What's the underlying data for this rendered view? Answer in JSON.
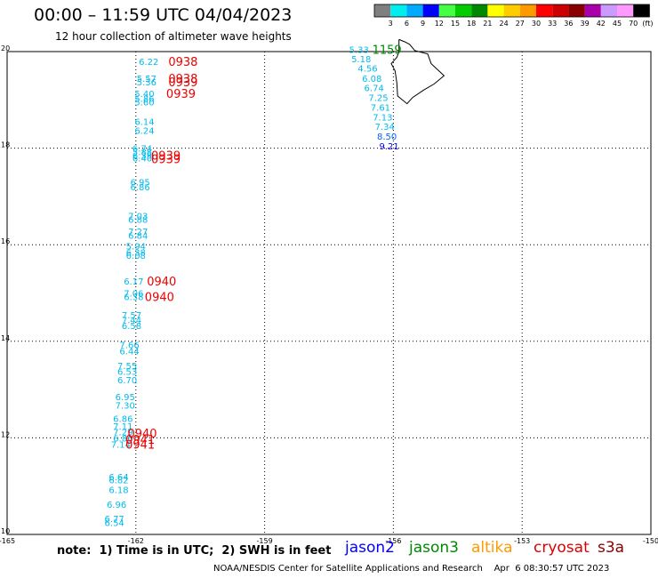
{
  "header": {
    "title": "00:00 – 11:59 UTC 04/04/2023",
    "subtitle": "12 hour collection of altimeter wave heights"
  },
  "footer": {
    "note": "note:  1) Time is in UTC;  2) SWH is in feet",
    "credit": "NOAA/NESDIS Center for Satellite Applications and Research    Apr  6 08:30:57 UTC 2023",
    "satellites": [
      {
        "name": "jason2",
        "color": "#0000ff"
      },
      {
        "name": "jason3",
        "color": "#008800"
      },
      {
        "name": "altika",
        "color": "#ff9900"
      },
      {
        "name": "cryosat",
        "color": "#dd0000"
      },
      {
        "name": "s3a",
        "color": "#880000"
      }
    ]
  },
  "legend": {
    "values": [
      "3",
      "6",
      "9",
      "12",
      "15",
      "18",
      "21",
      "24",
      "27",
      "30",
      "33",
      "36",
      "39",
      "42",
      "45",
      "70"
    ],
    "unit": "(ft)",
    "colors": [
      "#7f7f7f",
      "#00eeee",
      "#00aaff",
      "#0000ff",
      "#44ff44",
      "#00cc00",
      "#008800",
      "#ffff00",
      "#ffcc00",
      "#ff9900",
      "#ff0000",
      "#cc0000",
      "#880000",
      "#aa00aa",
      "#cc99ff",
      "#ff99ff",
      "#000000"
    ]
  },
  "chart_data": {
    "type": "scatter",
    "xlim": [
      -165,
      -150
    ],
    "ylim": [
      10,
      20
    ],
    "x_ticks": [
      "-165",
      "-162",
      "-159",
      "-156",
      "-153",
      "-150"
    ],
    "y_ticks": [
      "10",
      "12",
      "14",
      "16",
      "18",
      "20"
    ],
    "grid": true,
    "swh_points": [
      {
        "lon": -161.7,
        "lat": 19.8,
        "value": "6.22",
        "color": "#00bbee"
      },
      {
        "lon": -161.75,
        "lat": 19.45,
        "value": "5.57",
        "color": "#00bbee"
      },
      {
        "lon": -161.75,
        "lat": 19.37,
        "value": "5.36",
        "color": "#00bbee"
      },
      {
        "lon": -161.8,
        "lat": 19.13,
        "value": "5.40",
        "color": "#00bbee"
      },
      {
        "lon": -161.8,
        "lat": 19.03,
        "value": "5.86",
        "color": "#00bbee"
      },
      {
        "lon": -161.8,
        "lat": 18.96,
        "value": "5.60",
        "color": "#00bbee"
      },
      {
        "lon": -161.8,
        "lat": 18.55,
        "value": "6.14",
        "color": "#00bbee"
      },
      {
        "lon": -161.8,
        "lat": 18.37,
        "value": "6.24",
        "color": "#00bbee"
      },
      {
        "lon": -161.85,
        "lat": 18.0,
        "value": "6.74",
        "color": "#00bbee"
      },
      {
        "lon": -161.85,
        "lat": 17.93,
        "value": "5.88",
        "color": "#00bbee"
      },
      {
        "lon": -161.85,
        "lat": 17.85,
        "value": "6.39",
        "color": "#00bbee"
      },
      {
        "lon": -161.85,
        "lat": 17.8,
        "value": "6.40",
        "color": "#00bbee"
      },
      {
        "lon": -161.9,
        "lat": 17.3,
        "value": "6.95",
        "color": "#00bbee"
      },
      {
        "lon": -161.9,
        "lat": 17.2,
        "value": "6.86",
        "color": "#00bbee"
      },
      {
        "lon": -161.95,
        "lat": 16.6,
        "value": "7.03",
        "color": "#00bbee"
      },
      {
        "lon": -161.95,
        "lat": 16.53,
        "value": "6.88",
        "color": "#00bbee"
      },
      {
        "lon": -161.95,
        "lat": 16.28,
        "value": "7.27",
        "color": "#00bbee"
      },
      {
        "lon": -161.95,
        "lat": 16.2,
        "value": "6.84",
        "color": "#00bbee"
      },
      {
        "lon": -162.0,
        "lat": 15.98,
        "value": "5.94",
        "color": "#00bbee"
      },
      {
        "lon": -162.0,
        "lat": 15.85,
        "value": "6.38",
        "color": "#00bbee"
      },
      {
        "lon": -162.0,
        "lat": 15.78,
        "value": "6.08",
        "color": "#00bbee"
      },
      {
        "lon": -162.05,
        "lat": 15.25,
        "value": "6.17",
        "color": "#00bbee"
      },
      {
        "lon": -162.05,
        "lat": 15.0,
        "value": "7.06",
        "color": "#00bbee"
      },
      {
        "lon": -162.05,
        "lat": 14.93,
        "value": "6.38",
        "color": "#00bbee"
      },
      {
        "lon": -162.1,
        "lat": 14.55,
        "value": "7.57",
        "color": "#00bbee"
      },
      {
        "lon": -162.1,
        "lat": 14.45,
        "value": "7.44",
        "color": "#00bbee"
      },
      {
        "lon": -162.1,
        "lat": 14.33,
        "value": "6.58",
        "color": "#00bbee"
      },
      {
        "lon": -162.15,
        "lat": 13.93,
        "value": "7.66",
        "color": "#00bbee"
      },
      {
        "lon": -162.15,
        "lat": 13.8,
        "value": "6.44",
        "color": "#00bbee"
      },
      {
        "lon": -162.2,
        "lat": 13.5,
        "value": "7.55",
        "color": "#00bbee"
      },
      {
        "lon": -162.2,
        "lat": 13.38,
        "value": "6.53",
        "color": "#00bbee"
      },
      {
        "lon": -162.2,
        "lat": 13.2,
        "value": "6.70",
        "color": "#00bbee"
      },
      {
        "lon": -162.25,
        "lat": 12.85,
        "value": "6.95",
        "color": "#00bbee"
      },
      {
        "lon": -162.25,
        "lat": 12.68,
        "value": "7.30",
        "color": "#00bbee"
      },
      {
        "lon": -162.3,
        "lat": 12.4,
        "value": "6.86",
        "color": "#00bbee"
      },
      {
        "lon": -162.3,
        "lat": 12.25,
        "value": "7.11",
        "color": "#00bbee"
      },
      {
        "lon": -162.3,
        "lat": 12.13,
        "value": "7.29",
        "color": "#00bbee"
      },
      {
        "lon": -162.3,
        "lat": 12.0,
        "value": "6.86",
        "color": "#00bbee"
      },
      {
        "lon": -162.35,
        "lat": 11.87,
        "value": "7.14",
        "color": "#00bbee"
      },
      {
        "lon": -162.4,
        "lat": 11.2,
        "value": "6.64",
        "color": "#00bbee"
      },
      {
        "lon": -162.4,
        "lat": 11.13,
        "value": "6.82",
        "color": "#00bbee"
      },
      {
        "lon": -162.4,
        "lat": 10.93,
        "value": "6.18",
        "color": "#00bbee"
      },
      {
        "lon": -162.45,
        "lat": 10.63,
        "value": "6.96",
        "color": "#00bbee"
      },
      {
        "lon": -162.5,
        "lat": 10.33,
        "value": "6.77",
        "color": "#00bbee"
      },
      {
        "lon": -162.5,
        "lat": 10.25,
        "value": "6.54",
        "color": "#00bbee"
      },
      {
        "lon": -156.8,
        "lat": 20.05,
        "value": "5.33",
        "color": "#00bbee"
      },
      {
        "lon": -156.75,
        "lat": 19.85,
        "value": "5.18",
        "color": "#00bbee"
      },
      {
        "lon": -156.6,
        "lat": 19.66,
        "value": "4.56",
        "color": "#00bbee"
      },
      {
        "lon": -156.5,
        "lat": 19.45,
        "value": "6.08",
        "color": "#00bbee"
      },
      {
        "lon": -156.45,
        "lat": 19.25,
        "value": "6.74",
        "color": "#00bbee"
      },
      {
        "lon": -156.35,
        "lat": 19.05,
        "value": "7.25",
        "color": "#00bbee"
      },
      {
        "lon": -156.3,
        "lat": 18.85,
        "value": "7.61",
        "color": "#00bbee"
      },
      {
        "lon": -156.25,
        "lat": 18.65,
        "value": "7.13",
        "color": "#00bbee"
      },
      {
        "lon": -156.2,
        "lat": 18.45,
        "value": "7.34",
        "color": "#00bbee"
      },
      {
        "lon": -156.15,
        "lat": 18.25,
        "value": "8.50",
        "color": "#0066ff"
      },
      {
        "lon": -156.1,
        "lat": 18.05,
        "value": "9.21",
        "color": "#0000ff"
      }
    ],
    "time_labels": [
      {
        "lon": -160.9,
        "lat": 19.8,
        "value": "0938",
        "color": "#ee0000"
      },
      {
        "lon": -160.9,
        "lat": 19.45,
        "value": "0938",
        "color": "#ee0000"
      },
      {
        "lon": -160.9,
        "lat": 19.37,
        "value": "0939",
        "color": "#ee0000"
      },
      {
        "lon": -160.95,
        "lat": 19.13,
        "value": "0939",
        "color": "#ee0000"
      },
      {
        "lon": -161.3,
        "lat": 17.85,
        "value": "0939",
        "color": "#ee0000"
      },
      {
        "lon": -161.3,
        "lat": 17.78,
        "value": "0939",
        "color": "#ee0000"
      },
      {
        "lon": -161.4,
        "lat": 15.25,
        "value": "0940",
        "color": "#ee0000"
      },
      {
        "lon": -161.45,
        "lat": 14.93,
        "value": "0940",
        "color": "#ee0000"
      },
      {
        "lon": -161.85,
        "lat": 12.1,
        "value": "0940",
        "color": "#ee0000"
      },
      {
        "lon": -161.9,
        "lat": 11.97,
        "value": "0941",
        "color": "#ee0000"
      },
      {
        "lon": -161.9,
        "lat": 11.87,
        "value": "0941",
        "color": "#ee0000"
      },
      {
        "lon": -156.15,
        "lat": 20.05,
        "value": "1159",
        "color": "#008800"
      }
    ],
    "island": {
      "name": "Big Island (Hawaii) coastline",
      "outline": [
        [
          -155.87,
          20.25
        ],
        [
          -155.73,
          20.2
        ],
        [
          -155.62,
          20.15
        ],
        [
          -155.5,
          20.02
        ],
        [
          -155.2,
          19.95
        ],
        [
          -155.12,
          19.75
        ],
        [
          -154.82,
          19.5
        ],
        [
          -155.05,
          19.33
        ],
        [
          -155.3,
          19.2
        ],
        [
          -155.55,
          19.05
        ],
        [
          -155.68,
          18.92
        ],
        [
          -155.9,
          19.08
        ],
        [
          -155.92,
          19.35
        ],
        [
          -155.96,
          19.6
        ],
        [
          -156.05,
          19.75
        ],
        [
          -155.92,
          19.88
        ],
        [
          -155.87,
          20.0
        ],
        [
          -155.87,
          20.25
        ]
      ]
    }
  }
}
